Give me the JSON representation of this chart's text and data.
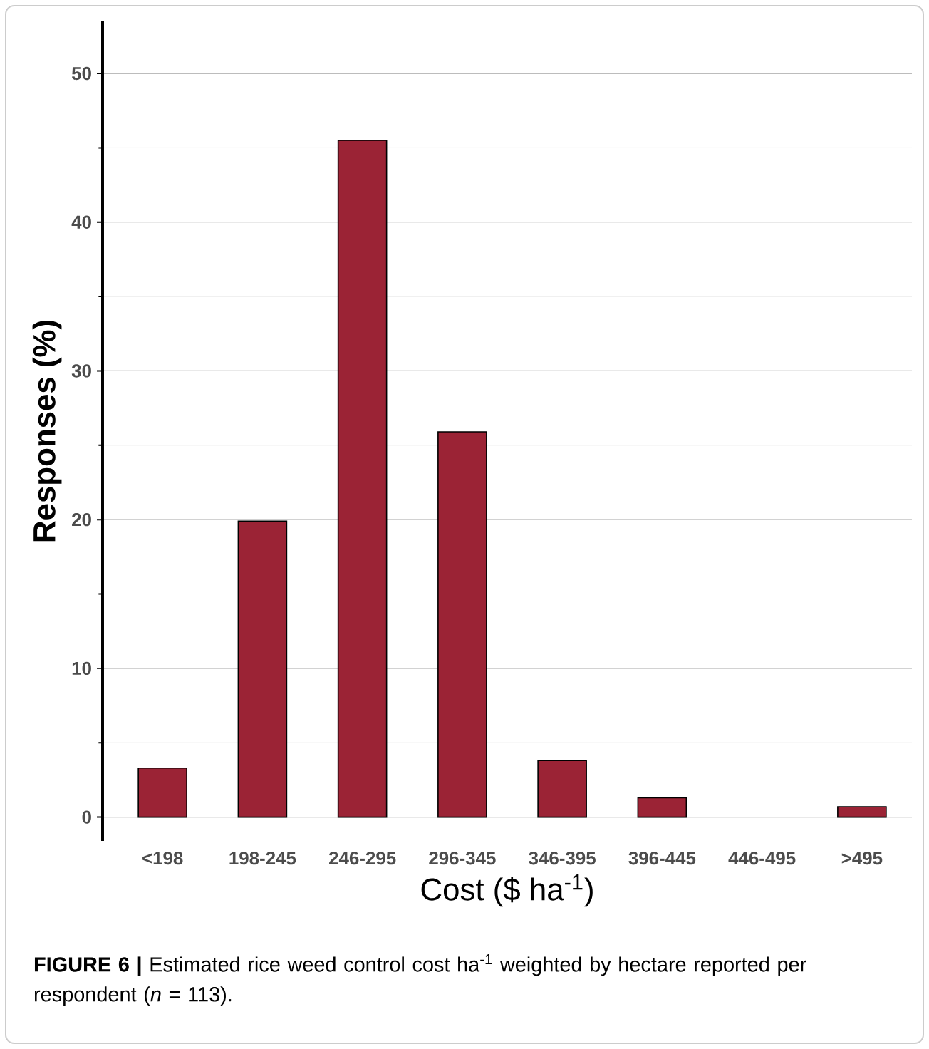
{
  "chart_data": {
    "type": "bar",
    "xlabel": "Cost ($ ha$^{-1}$)",
    "ylabel": "Responses (%)",
    "categories": [
      "<198",
      "198-245",
      "246-295",
      "296-345",
      "346-395",
      "396-445",
      "446-495",
      ">495"
    ],
    "values": [
      3.3,
      19.9,
      45.5,
      25.9,
      3.8,
      1.3,
      0,
      0.7
    ],
    "color": "#9b2335",
    "ylim": [
      -1.6,
      53.5
    ],
    "yticks": [
      0,
      10,
      20,
      30,
      40,
      50
    ],
    "grid": "y",
    "annotations": [
      "**FIGURE 6 |** Estimated rice weed control cost ha$^{-1}$ weighted by hectare reported per respondent (*n* = 113)."
    ]
  }
}
